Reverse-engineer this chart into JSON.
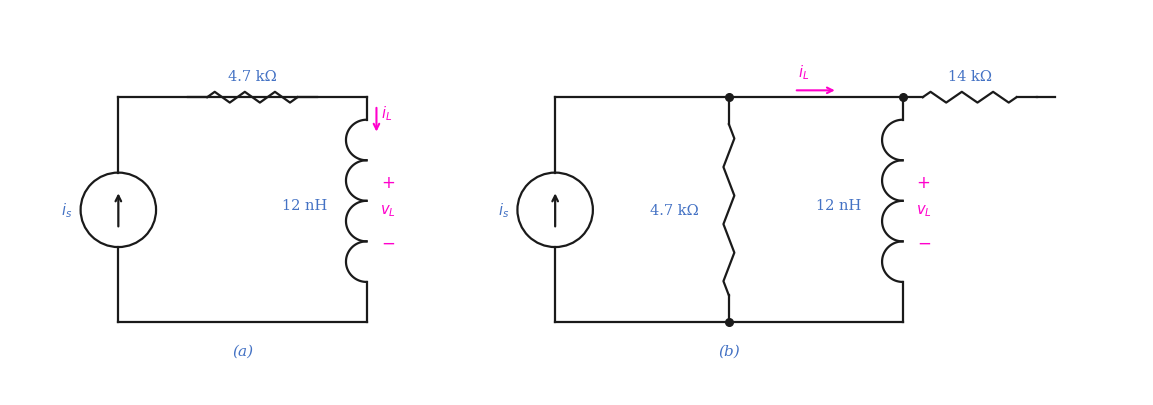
{
  "bg_color": "#ffffff",
  "line_color": "#1a1a1a",
  "magenta": "#FF00CC",
  "blue_label": "#4472C4",
  "circuit_a": {
    "label": "(a)",
    "resistor_label": "4.7 kΩ",
    "inductor_label": "12 nH",
    "iL_label": "i_L",
    "vL_label": "v_L",
    "is_label": "i_s"
  },
  "circuit_b": {
    "label": "(b)",
    "resistor_top_label": "14 kΩ",
    "resistor_mid_label": "4.7 kΩ",
    "inductor_label": "12 nH",
    "iL_label": "i_L",
    "vL_label": "v_L",
    "is_label": "i_s"
  }
}
